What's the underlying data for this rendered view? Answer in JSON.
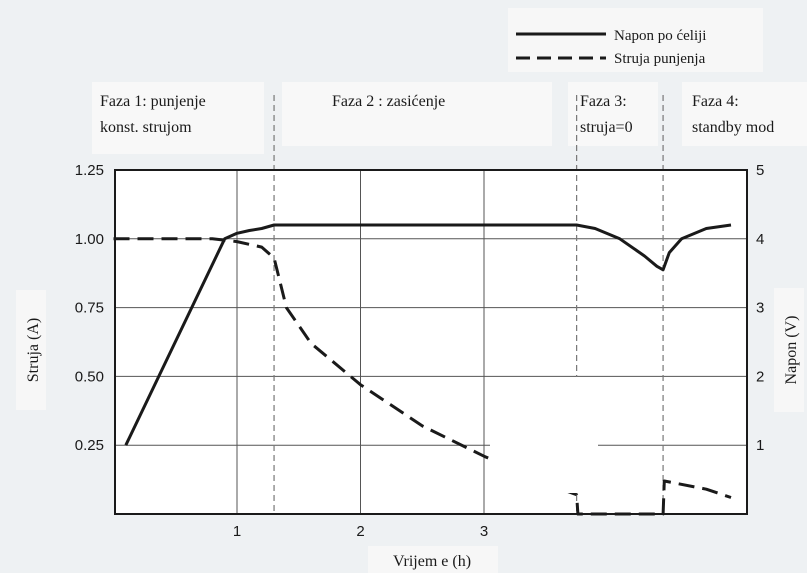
{
  "chart_data": {
    "type": "line",
    "title": "",
    "xlabel": "Vrijem e (h)",
    "ylabel_left": "Struja (A)",
    "ylabel_right": "Napon (V)",
    "xlim": [
      0,
      5
    ],
    "ylim_left": [
      0,
      1.25
    ],
    "ylim_right": [
      0,
      5
    ],
    "x_ticks": [
      1,
      2,
      3
    ],
    "y_ticks_left": [
      "0.25",
      "0.50",
      "0.75",
      "1.00",
      "1.25"
    ],
    "y_ticks_right": [
      "1",
      "2",
      "3",
      "4",
      "5"
    ],
    "grid": true,
    "legend_position": "top-right",
    "phases": [
      {
        "lines": [
          "Faza 1: punjenje",
          "konst. strujom"
        ],
        "end_x": null
      },
      {
        "lines": [
          "Faza 2 : zasićenje"
        ],
        "end_x": 1.3
      },
      {
        "lines": [
          "Faza 3:",
          "struja=0"
        ],
        "end_x": 3.75
      },
      {
        "lines": [
          "Faza 4:",
          "standby mod"
        ],
        "end_x": 4.45
      }
    ],
    "series": [
      {
        "name": "Napon po ćeliji",
        "axis": "right",
        "style": "solid",
        "x": [
          0.1,
          0.9,
          1.0,
          1.1,
          1.2,
          1.3,
          1.5,
          2.0,
          3.0,
          3.75,
          3.9,
          4.1,
          4.3,
          4.4,
          4.45,
          4.5,
          4.6,
          4.8,
          5.0
        ],
        "y": [
          1.0,
          4.0,
          4.08,
          4.12,
          4.15,
          4.2,
          4.2,
          4.2,
          4.2,
          4.2,
          4.15,
          4.0,
          3.75,
          3.6,
          3.55,
          3.8,
          4.0,
          4.15,
          4.2
        ]
      },
      {
        "name": "Struja punjenja",
        "axis": "left",
        "style": "dashed",
        "x": [
          0,
          0.8,
          1.0,
          1.2,
          1.3,
          1.4,
          1.6,
          2.0,
          2.5,
          3.0,
          3.5,
          3.75,
          3.76,
          4.45,
          4.46,
          4.8,
          5.0
        ],
        "y": [
          1.0,
          1.0,
          0.99,
          0.97,
          0.93,
          0.75,
          0.62,
          0.47,
          0.32,
          0.21,
          0.11,
          0.07,
          0.0,
          0.0,
          0.12,
          0.09,
          0.06
        ]
      }
    ]
  },
  "colors": {
    "line": "#1a1a1a",
    "grid": "#555555",
    "plot_bg": "#ffffff",
    "label_bg": "#f7f7f7",
    "page_bg": "#eef1f3"
  }
}
